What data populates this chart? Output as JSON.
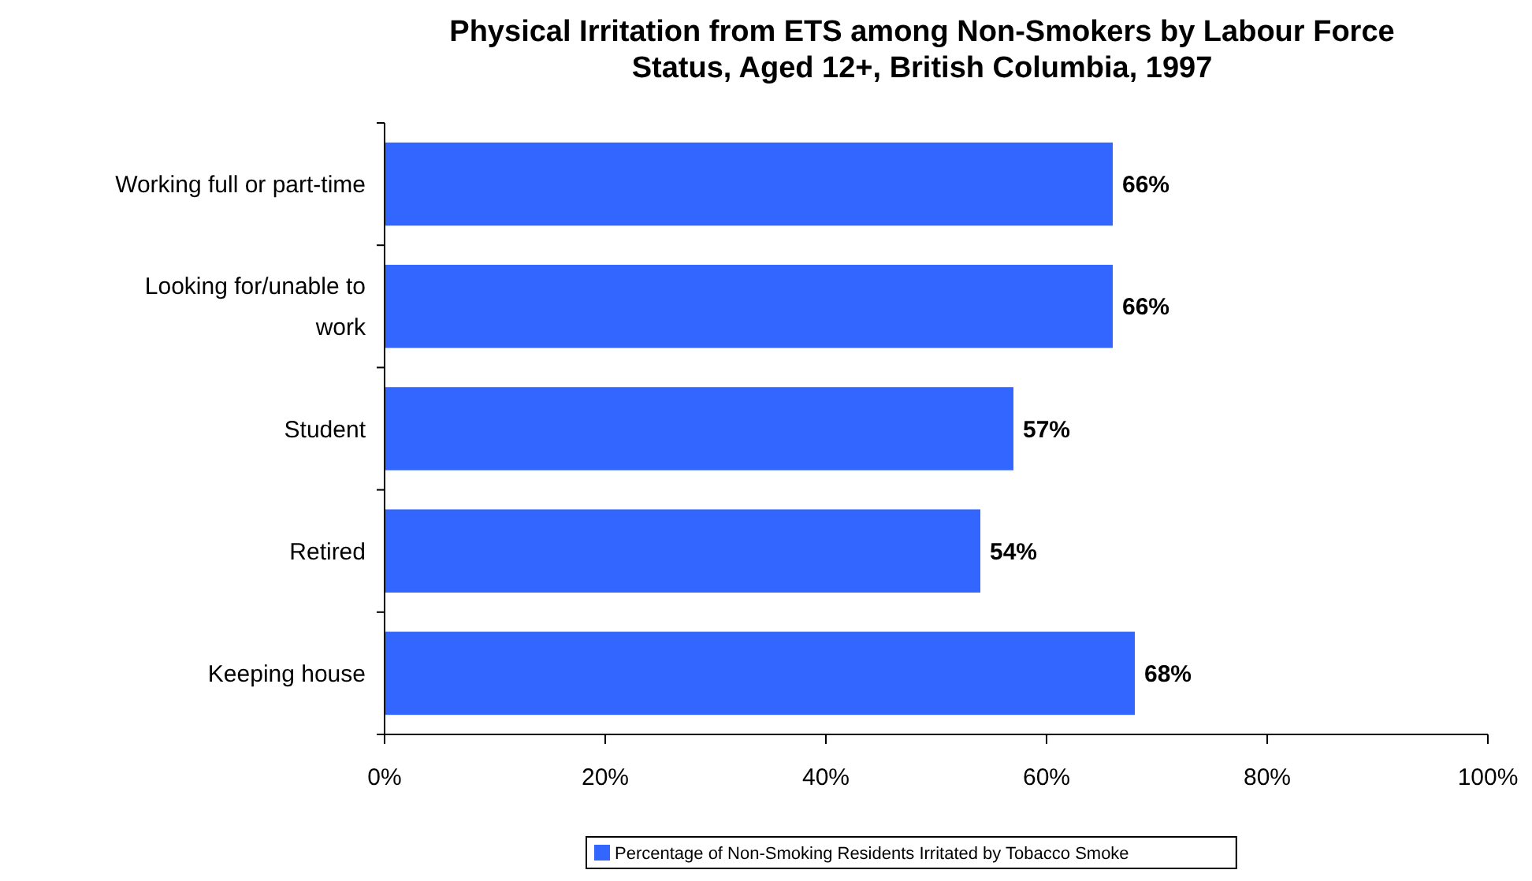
{
  "chart_data": {
    "type": "bar",
    "orientation": "horizontal",
    "title": "Physical Irritation from ETS among Non-Smokers by Labour Force Status, Aged 12+, British Columbia, 1997",
    "categories": [
      "Working full or part-time",
      "Looking for/unable to work",
      "Student",
      "Retired",
      "Keeping house"
    ],
    "series": [
      {
        "name": "Percentage of Non-Smoking Residents Irritated by Tobacco Smoke",
        "color": "#3366ff",
        "values": [
          66,
          66,
          57,
          54,
          68
        ],
        "value_labels": [
          "66%",
          "66%",
          "57%",
          "54%",
          "68%"
        ]
      }
    ],
    "xlim": [
      0,
      100
    ],
    "xticks": [
      {
        "value": 0,
        "label": "0%"
      },
      {
        "value": 20,
        "label": "20%"
      },
      {
        "value": 40,
        "label": "40%"
      },
      {
        "value": 60,
        "label": "60%"
      },
      {
        "value": 80,
        "label": "80%"
      },
      {
        "value": 100,
        "label": "100%"
      }
    ],
    "grid": false,
    "legend": "bottom"
  }
}
